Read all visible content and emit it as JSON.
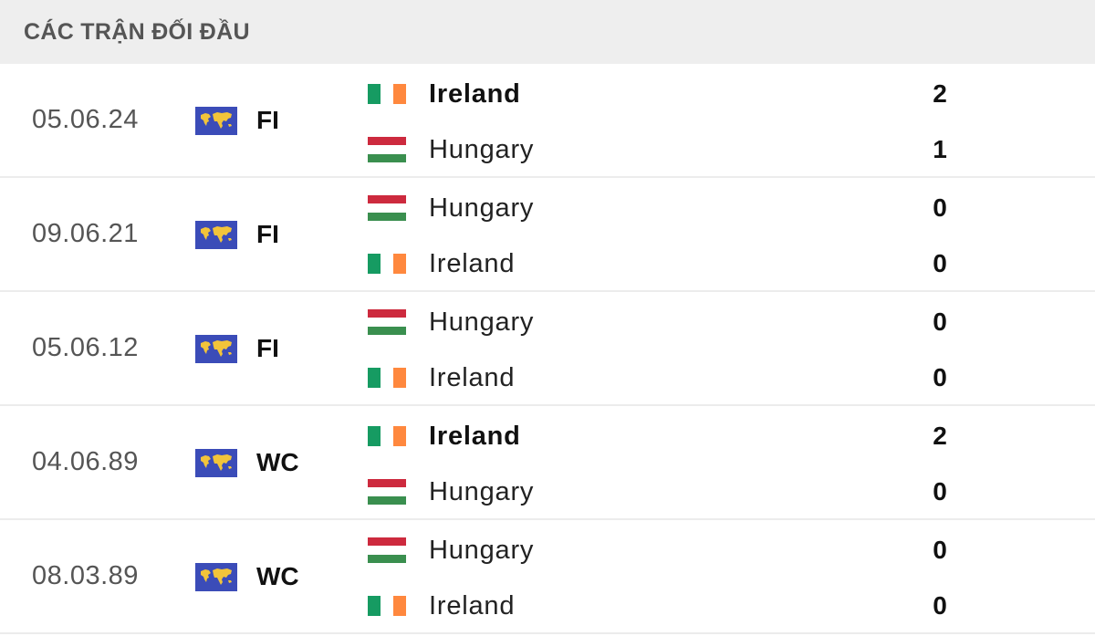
{
  "header": {
    "title": "CÁC TRẬN ĐỐI ĐẦU"
  },
  "colors": {
    "ireland_green": "#169b62",
    "ireland_orange": "#ff883e",
    "hungary_red": "#cd2a3e",
    "hungary_green": "#3a8f4f",
    "competition_icon_bg": "#3b4cb8",
    "competition_icon_fg": "#f2c43a"
  },
  "matches": [
    {
      "date": "05.06.24",
      "competition": "FI",
      "competition_icon": "world-map-icon",
      "home": {
        "name": "Ireland",
        "flag": "ie",
        "score": "2",
        "winner": true
      },
      "away": {
        "name": "Hungary",
        "flag": "hu",
        "score": "1",
        "winner": false
      }
    },
    {
      "date": "09.06.21",
      "competition": "FI",
      "competition_icon": "world-map-icon",
      "home": {
        "name": "Hungary",
        "flag": "hu",
        "score": "0",
        "winner": false
      },
      "away": {
        "name": "Ireland",
        "flag": "ie",
        "score": "0",
        "winner": false
      }
    },
    {
      "date": "05.06.12",
      "competition": "FI",
      "competition_icon": "world-map-icon",
      "home": {
        "name": "Hungary",
        "flag": "hu",
        "score": "0",
        "winner": false
      },
      "away": {
        "name": "Ireland",
        "flag": "ie",
        "score": "0",
        "winner": false
      }
    },
    {
      "date": "04.06.89",
      "competition": "WC",
      "competition_icon": "world-map-icon",
      "home": {
        "name": "Ireland",
        "flag": "ie",
        "score": "2",
        "winner": true
      },
      "away": {
        "name": "Hungary",
        "flag": "hu",
        "score": "0",
        "winner": false
      }
    },
    {
      "date": "08.03.89",
      "competition": "WC",
      "competition_icon": "world-map-icon",
      "home": {
        "name": "Hungary",
        "flag": "hu",
        "score": "0",
        "winner": false
      },
      "away": {
        "name": "Ireland",
        "flag": "ie",
        "score": "0",
        "winner": false
      }
    }
  ]
}
